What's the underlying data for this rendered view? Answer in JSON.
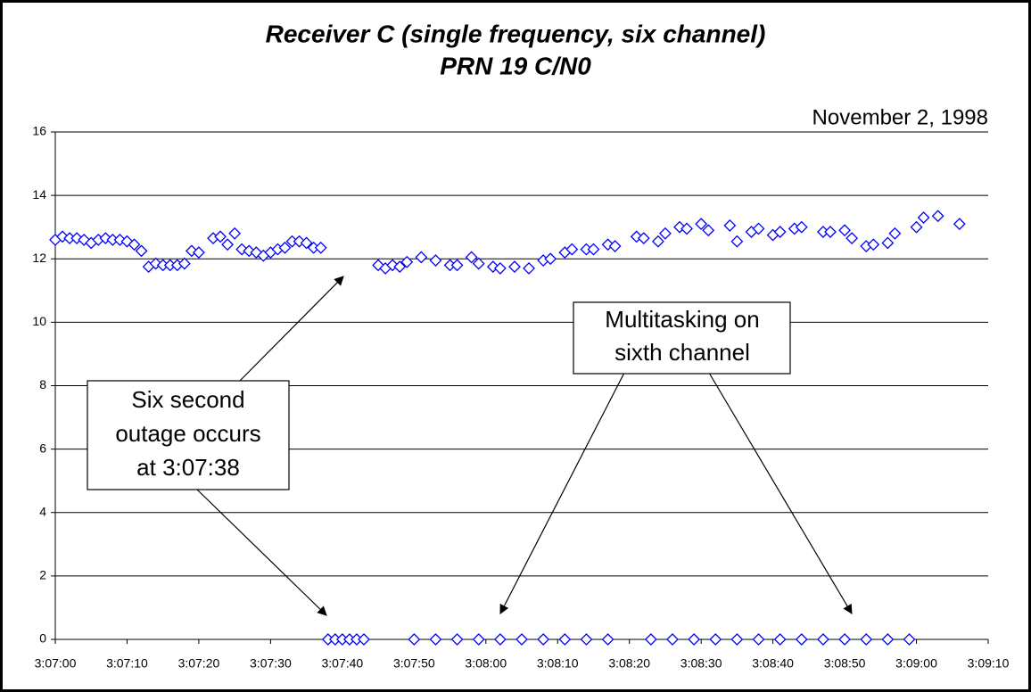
{
  "chart_data": {
    "type": "scatter",
    "title": [
      "Receiver C (single frequency, six channel)",
      "PRN 19 C/N0"
    ],
    "subtitle": "November 2, 1998",
    "annotations": [
      {
        "lines": [
          "Six second",
          "outage occurs",
          "at 3:07:38"
        ]
      },
      {
        "lines": [
          "Multitasking on",
          "sixth channel"
        ]
      }
    ],
    "xlim": [
      "3:07:00",
      "3:09:10"
    ],
    "xticks": [
      "3:07:00",
      "3:07:10",
      "3:07:20",
      "3:07:30",
      "3:07:40",
      "3:07:50",
      "3:08:00",
      "3:08:10",
      "3:08:20",
      "3:08:30",
      "3:08:40",
      "3:08:50",
      "3:09:00",
      "3:09:10"
    ],
    "ylim": [
      0,
      16
    ],
    "yticks": [
      0,
      2,
      4,
      6,
      8,
      10,
      12,
      14,
      16
    ],
    "grid": true,
    "series": [
      {
        "color": "#0000ff",
        "x": [
          "3:07:00",
          "3:07:01",
          "3:07:02",
          "3:07:03",
          "3:07:04",
          "3:07:05",
          "3:07:06",
          "3:07:07",
          "3:07:08",
          "3:07:09",
          "3:07:10",
          "3:07:11",
          "3:07:12",
          "3:07:13",
          "3:07:14",
          "3:07:15",
          "3:07:16",
          "3:07:17",
          "3:07:18",
          "3:07:19",
          "3:07:20",
          "3:07:22",
          "3:07:23",
          "3:07:24",
          "3:07:25",
          "3:07:26",
          "3:07:27",
          "3:07:28",
          "3:07:29",
          "3:07:30",
          "3:07:31",
          "3:07:32",
          "3:07:33",
          "3:07:34",
          "3:07:35",
          "3:07:36",
          "3:07:37",
          "3:07:45",
          "3:07:46",
          "3:07:47",
          "3:07:48",
          "3:07:49",
          "3:07:51",
          "3:07:53",
          "3:07:55",
          "3:07:56",
          "3:07:58",
          "3:07:59",
          "3:08:01",
          "3:08:02",
          "3:08:04",
          "3:08:06",
          "3:08:08",
          "3:08:09",
          "3:08:11",
          "3:08:12",
          "3:08:14",
          "3:08:15",
          "3:08:17",
          "3:08:18",
          "3:08:21",
          "3:08:22",
          "3:08:24",
          "3:08:25",
          "3:08:27",
          "3:08:28",
          "3:08:30",
          "3:08:31",
          "3:08:34",
          "3:08:35",
          "3:08:37",
          "3:08:38",
          "3:08:40",
          "3:08:41",
          "3:08:43",
          "3:08:44",
          "3:08:47",
          "3:08:48",
          "3:08:50",
          "3:08:51",
          "3:08:53",
          "3:08:54",
          "3:08:56",
          "3:08:57",
          "3:09:00",
          "3:09:01",
          "3:09:03",
          "3:09:06",
          "3:07:38",
          "3:07:39",
          "3:07:40",
          "3:07:41",
          "3:07:42",
          "3:07:43",
          "3:07:50",
          "3:07:53",
          "3:07:56",
          "3:07:59",
          "3:08:02",
          "3:08:05",
          "3:08:08",
          "3:08:11",
          "3:08:14",
          "3:08:17",
          "3:08:23",
          "3:08:26",
          "3:08:29",
          "3:08:32",
          "3:08:35",
          "3:08:38",
          "3:08:41",
          "3:08:44",
          "3:08:47",
          "3:08:50",
          "3:08:53",
          "3:08:56",
          "3:08:59"
        ],
        "values": [
          12.6,
          12.7,
          12.65,
          12.65,
          12.6,
          12.5,
          12.6,
          12.65,
          12.6,
          12.6,
          12.55,
          12.45,
          12.25,
          11.75,
          11.85,
          11.8,
          11.8,
          11.8,
          11.85,
          12.25,
          12.2,
          12.65,
          12.7,
          12.45,
          12.8,
          12.3,
          12.25,
          12.2,
          12.1,
          12.2,
          12.3,
          12.35,
          12.55,
          12.55,
          12.5,
          12.35,
          12.35,
          11.8,
          11.7,
          11.8,
          11.75,
          11.9,
          12.05,
          11.95,
          11.8,
          11.8,
          12.05,
          11.85,
          11.75,
          11.7,
          11.75,
          11.7,
          11.95,
          12.0,
          12.2,
          12.3,
          12.3,
          12.3,
          12.45,
          12.4,
          12.7,
          12.65,
          12.55,
          12.8,
          13.0,
          12.95,
          13.1,
          12.9,
          13.05,
          12.55,
          12.85,
          12.95,
          12.75,
          12.85,
          12.95,
          13.0,
          12.85,
          12.85,
          12.9,
          12.65,
          12.4,
          12.45,
          12.5,
          12.8,
          13.0,
          13.3,
          13.35,
          13.1,
          0,
          0,
          0,
          0,
          0,
          0,
          0,
          0,
          0,
          0,
          0,
          0,
          0,
          0,
          0,
          0,
          0,
          0,
          0,
          0,
          0,
          0,
          0,
          0,
          0,
          0,
          0,
          0,
          0
        ]
      }
    ]
  }
}
